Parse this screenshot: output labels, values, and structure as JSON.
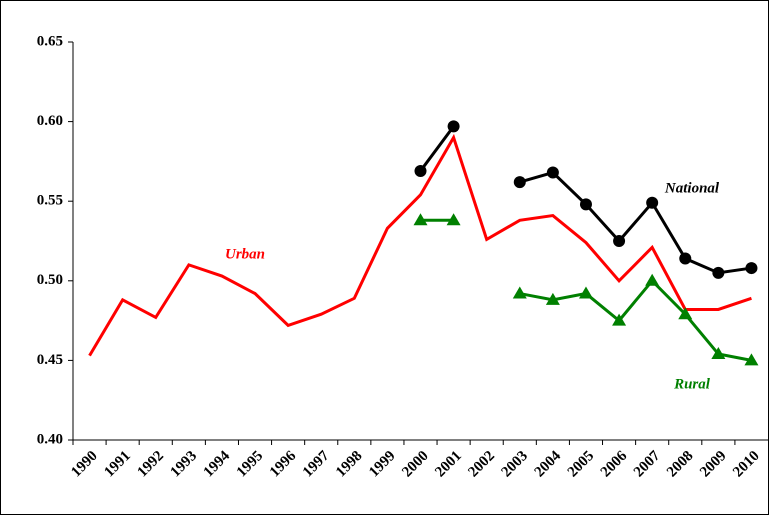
{
  "chart_data": {
    "type": "line",
    "categories": [
      "1990",
      "1991",
      "1992",
      "1993",
      "1994",
      "1995",
      "1996",
      "1997",
      "1998",
      "1999",
      "2000",
      "2001",
      "2002",
      "2003",
      "2004",
      "2005",
      "2006",
      "2007",
      "2008",
      "2009",
      "2010"
    ],
    "series": [
      {
        "name": "Urban",
        "color": "#ff0000",
        "marker": "none",
        "values": [
          0.453,
          0.488,
          0.477,
          0.51,
          0.503,
          0.492,
          0.472,
          0.479,
          0.489,
          0.533,
          0.554,
          0.59,
          0.526,
          0.538,
          0.541,
          0.524,
          0.5,
          0.521,
          0.482,
          0.482,
          0.489
        ]
      },
      {
        "name": "National",
        "color": "#000000",
        "marker": "circle",
        "values": [
          null,
          null,
          null,
          null,
          null,
          null,
          null,
          null,
          null,
          null,
          0.569,
          0.597,
          null,
          0.562,
          0.568,
          0.548,
          0.525,
          0.549,
          0.514,
          0.505,
          0.508
        ]
      },
      {
        "name": "Rural",
        "color": "#008000",
        "marker": "triangle",
        "values": [
          null,
          null,
          null,
          null,
          null,
          null,
          null,
          null,
          null,
          null,
          0.538,
          0.538,
          null,
          0.492,
          0.488,
          0.492,
          0.475,
          0.5,
          0.479,
          0.454,
          0.45
        ]
      }
    ],
    "ylim": [
      0.4,
      0.65
    ],
    "yticks": [
      {
        "value": 0.4,
        "label": "0.40"
      },
      0.45,
      {
        "value": 0.5,
        "label": "0.50"
      },
      0.55,
      {
        "value": 0.6,
        "label": "0.60"
      },
      0.65
    ],
    "grid": false
  }
}
